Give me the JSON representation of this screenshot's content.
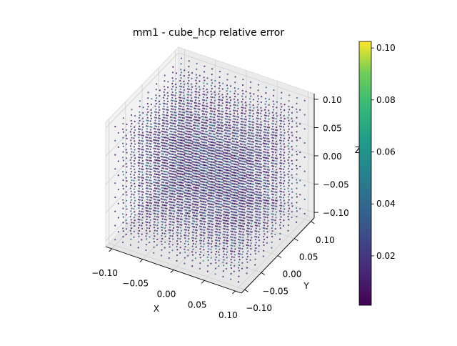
{
  "chart_data": {
    "type": "scatter",
    "projection": "3d",
    "title": "mm1 - cube_hcp relative error",
    "xlabel": "X",
    "ylabel": "Y",
    "zlabel": "Z",
    "xlim": [
      -0.11,
      0.11
    ],
    "ylim": [
      -0.11,
      0.11
    ],
    "zlim": [
      -0.11,
      0.11
    ],
    "xticks": [
      "−0.10",
      "−0.05",
      "0.00",
      "0.05",
      "0.10"
    ],
    "yticks": [
      "−0.10",
      "−0.05",
      "0.00",
      "0.05",
      "0.10"
    ],
    "zticks": [
      "−0.10",
      "−0.05",
      "0.00",
      "0.05",
      "0.10"
    ],
    "tick_values": [
      -0.1,
      -0.05,
      0,
      0.05,
      0.1
    ],
    "points": {
      "arrangement": "hcp lattice filling cube",
      "extent": [
        -0.1,
        0.1
      ],
      "color_value": "relative error"
    },
    "grid": true,
    "colormap": "viridis",
    "colorbar": {
      "range": [
        0.001,
        0.1025
      ],
      "ticks": [
        "0.02",
        "0.04",
        "0.06",
        "0.08",
        "0.10"
      ],
      "tick_values": [
        0.02,
        0.04,
        0.06,
        0.08,
        0.1
      ]
    }
  }
}
